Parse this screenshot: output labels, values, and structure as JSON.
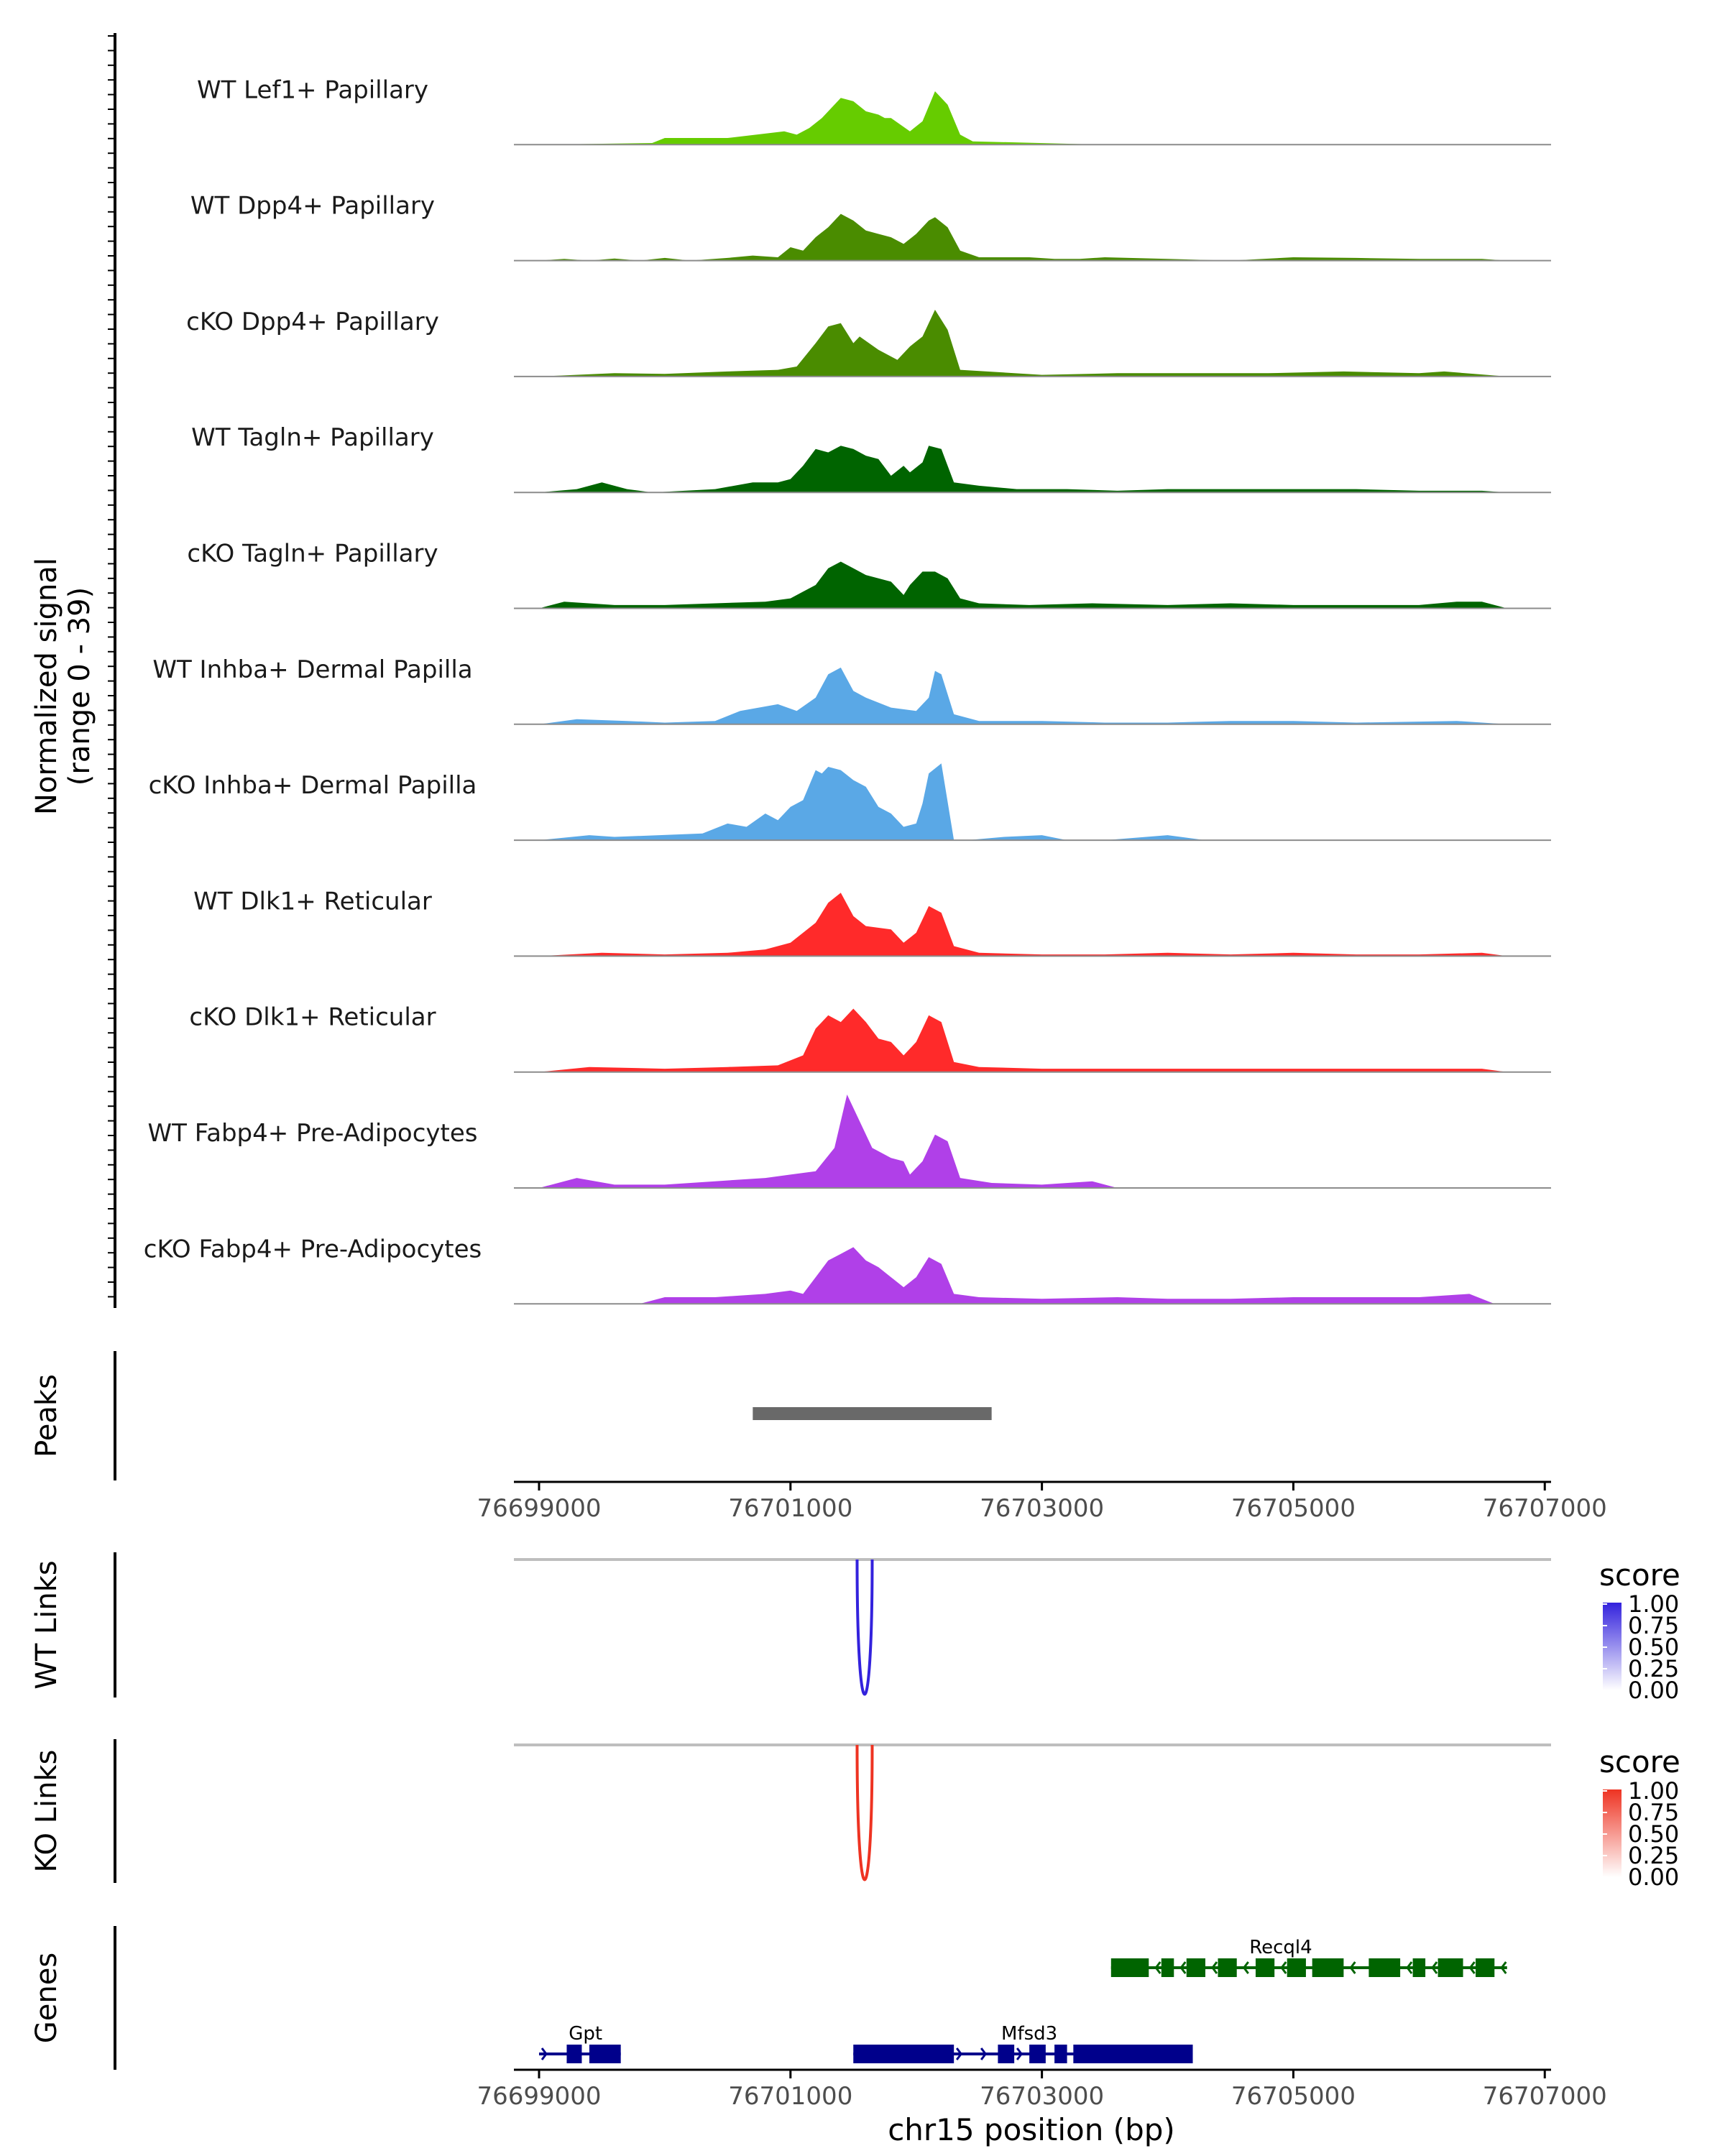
{
  "chart_data": {
    "type": "genome-coverage",
    "region": {
      "chrom": "chr15",
      "start": 76698800,
      "end": 76707050
    },
    "coverage": {
      "ylabel_line1": "Normalized signal",
      "ylabel_line2": "(range 0 - 39)",
      "y_range": [
        0,
        39
      ],
      "tracks": [
        {
          "name": "WT Lef1+ Papillary",
          "color": "#66cc00",
          "x": [
            76699000,
            76699900,
            76700000,
            76700500,
            76700950,
            76701050,
            76701150,
            76701250,
            76701400,
            76701500,
            76701600,
            76701700,
            76701750,
            76701800,
            76701950,
            76702050,
            76702150,
            76702250,
            76702350,
            76702450,
            76703500,
            76706700
          ],
          "y": [
            0,
            0.5,
            2,
            2,
            4,
            3,
            5,
            8,
            14,
            13,
            10,
            9,
            8,
            8,
            4,
            7,
            16,
            12,
            3,
            1,
            0,
            0
          ]
        },
        {
          "name": "WT Dpp4+ Papillary",
          "color": "#4a8c00",
          "x": [
            76699000,
            76699200,
            76699400,
            76699600,
            76699800,
            76700000,
            76700200,
            76700500,
            76700700,
            76700900,
            76701000,
            76701100,
            76701200,
            76701300,
            76701400,
            76701500,
            76701600,
            76701700,
            76701800,
            76701900,
            76702000,
            76702100,
            76702150,
            76702250,
            76702350,
            76702500,
            76702900,
            76703100,
            76703300,
            76703500,
            76704000,
            76704500,
            76705000,
            76705500,
            76706000,
            76706500,
            76706700
          ],
          "y": [
            0,
            0.5,
            0,
            0.6,
            0,
            0.8,
            0,
            0.8,
            1.5,
            1,
            4,
            3,
            7,
            10,
            14,
            12,
            9,
            8,
            7,
            5,
            8,
            12,
            13,
            10,
            3,
            1,
            1,
            0.5,
            0.5,
            1,
            0.5,
            0,
            1,
            0.8,
            0.5,
            0.5,
            0
          ]
        },
        {
          "name": "cKO Dpp4+ Papillary",
          "color": "#4a8c00",
          "x": [
            76699000,
            76699600,
            76700000,
            76700500,
            76700900,
            76701050,
            76701200,
            76701300,
            76701400,
            76701500,
            76701550,
            76701700,
            76701850,
            76701950,
            76702050,
            76702150,
            76702250,
            76702350,
            76703000,
            76703600,
            76704200,
            76704800,
            76705400,
            76706000,
            76706200,
            76706700
          ],
          "y": [
            0,
            1,
            0.8,
            1.5,
            2,
            3,
            10,
            15,
            16,
            10,
            12,
            8,
            5,
            9,
            12,
            20,
            14,
            2,
            0.5,
            1,
            1,
            1,
            1.5,
            1,
            1.5,
            0
          ]
        },
        {
          "name": "WT Tagln+ Papillary",
          "color": "#006400",
          "x": [
            76699000,
            76699300,
            76699500,
            76699700,
            76699900,
            76700400,
            76700700,
            76700900,
            76701000,
            76701100,
            76701200,
            76701300,
            76701400,
            76701500,
            76701600,
            76701700,
            76701800,
            76701900,
            76701950,
            76702050,
            76702100,
            76702200,
            76702300,
            76702500,
            76702800,
            76703200,
            76703600,
            76704000,
            76704500,
            76705000,
            76705500,
            76706000,
            76706500,
            76706700
          ],
          "y": [
            0,
            1,
            3,
            1,
            0,
            1,
            3,
            3,
            4,
            8,
            13,
            12,
            14,
            13,
            11,
            10,
            5,
            8,
            6,
            9,
            14,
            13,
            3,
            2,
            1,
            1,
            0.5,
            1,
            1,
            1,
            1,
            0.5,
            0.5,
            0
          ]
        },
        {
          "name": "cKO Tagln+ Papillary",
          "color": "#006400",
          "x": [
            76699000,
            76699200,
            76699600,
            76700000,
            76700400,
            76700800,
            76701000,
            76701100,
            76701200,
            76701300,
            76701400,
            76701500,
            76701600,
            76701700,
            76701800,
            76701900,
            76701950,
            76702050,
            76702150,
            76702250,
            76702350,
            76702500,
            76702900,
            76703400,
            76704000,
            76704500,
            76705000,
            76705500,
            76706000,
            76706300,
            76706500,
            76706700
          ],
          "y": [
            0,
            2,
            1,
            1,
            1.5,
            2,
            3,
            5,
            7,
            12,
            14,
            12,
            10,
            9,
            8,
            4,
            7,
            11,
            11,
            9,
            3,
            1.5,
            1,
            1.5,
            1,
            1.5,
            1,
            1,
            1,
            2,
            2,
            0
          ]
        },
        {
          "name": "WT Inhba+ Dermal Papilla",
          "color": "#5aa8e6",
          "x": [
            76699000,
            76699300,
            76699700,
            76700000,
            76700400,
            76700600,
            76700900,
            76701050,
            76701200,
            76701300,
            76701400,
            76701500,
            76701600,
            76701800,
            76702000,
            76702100,
            76702150,
            76702200,
            76702300,
            76702500,
            76703000,
            76703500,
            76704000,
            76704500,
            76705000,
            76705500,
            76706300,
            76706700
          ],
          "y": [
            0,
            1.5,
            1,
            0.5,
            1,
            4,
            6,
            4,
            8,
            15,
            17,
            10,
            8,
            5,
            4,
            8,
            16,
            15,
            3,
            1,
            1,
            0.5,
            0.5,
            1,
            1,
            0.5,
            1,
            0
          ]
        },
        {
          "name": "cKO Inhba+ Dermal Papilla",
          "color": "#5aa8e6",
          "x": [
            76699000,
            76699400,
            76699600,
            76700300,
            76700500,
            76700650,
            76700800,
            76700900,
            76701000,
            76701100,
            76701200,
            76701250,
            76701300,
            76701400,
            76701500,
            76701600,
            76701700,
            76701800,
            76701900,
            76702000,
            76702050,
            76702100,
            76702200,
            76702300,
            76702400,
            76702700,
            76703000,
            76703200,
            76703500,
            76704000,
            76704300,
            76706700
          ],
          "y": [
            0,
            1.5,
            1,
            2,
            5,
            4,
            8,
            6,
            10,
            12,
            21,
            20,
            22,
            21,
            18,
            16,
            10,
            8,
            4,
            5,
            11,
            20,
            23,
            0,
            0,
            1,
            1.5,
            0,
            0,
            1.5,
            0,
            0
          ]
        },
        {
          "name": "WT Dlk1+ Reticular",
          "color": "#ff2a2a",
          "x": [
            76699000,
            76699500,
            76700000,
            76700500,
            76700800,
            76701000,
            76701200,
            76701300,
            76701400,
            76701500,
            76701600,
            76701800,
            76701900,
            76702000,
            76702100,
            76702200,
            76702300,
            76702500,
            76703000,
            76703500,
            76704000,
            76704500,
            76705000,
            76705500,
            76706000,
            76706500,
            76706700
          ],
          "y": [
            0,
            1,
            0.5,
            1,
            2,
            4,
            10,
            16,
            19,
            12,
            9,
            8,
            4,
            7,
            15,
            13,
            3,
            1,
            0.5,
            0.5,
            1,
            0.5,
            1,
            0.5,
            0.5,
            1,
            0
          ]
        },
        {
          "name": "cKO Dlk1+ Reticular",
          "color": "#ff2a2a",
          "x": [
            76699000,
            76699400,
            76700000,
            76700500,
            76700900,
            76701100,
            76701200,
            76701300,
            76701400,
            76701500,
            76701600,
            76701700,
            76701800,
            76701900,
            76702000,
            76702100,
            76702200,
            76702300,
            76702500,
            76703000,
            76703500,
            76704000,
            76704500,
            76705000,
            76705500,
            76706000,
            76706500,
            76706700
          ],
          "y": [
            0,
            1.5,
            1,
            1.5,
            2,
            5,
            13,
            17,
            15,
            19,
            15,
            10,
            9,
            5,
            9,
            17,
            15,
            3,
            1.5,
            1,
            1,
            1,
            1,
            1,
            1,
            1,
            1,
            0
          ]
        },
        {
          "name": "WT Fabp4+ Pre-Adipocytes",
          "color": "#b040e8",
          "x": [
            76699000,
            76699300,
            76699600,
            76700000,
            76700400,
            76700800,
            76701000,
            76701200,
            76701350,
            76701450,
            76701550,
            76701650,
            76701800,
            76701900,
            76701950,
            76702050,
            76702150,
            76702250,
            76702350,
            76702600,
            76703000,
            76703400,
            76703600
          ],
          "y": [
            0,
            3,
            1,
            1,
            2,
            3,
            4,
            5,
            12,
            28,
            20,
            12,
            9,
            8,
            4,
            8,
            16,
            14,
            3,
            1.5,
            1,
            2,
            0
          ]
        },
        {
          "name": "cKO Fabp4+ Pre-Adipocytes",
          "color": "#b040e8",
          "x": [
            76699800,
            76700000,
            76700400,
            76700800,
            76701000,
            76701100,
            76701200,
            76701300,
            76701400,
            76701500,
            76701600,
            76701700,
            76701800,
            76701900,
            76702000,
            76702100,
            76702200,
            76702300,
            76702500,
            76703000,
            76703600,
            76704000,
            76704500,
            76705000,
            76705500,
            76706000,
            76706400,
            76706600
          ],
          "y": [
            0,
            2,
            2,
            3,
            4,
            3,
            8,
            13,
            15,
            17,
            13,
            11,
            8,
            5,
            8,
            14,
            12,
            3,
            2,
            1.5,
            2,
            1.5,
            1.5,
            2,
            2,
            2,
            3,
            0
          ]
        }
      ]
    },
    "peaks": {
      "label": "Peaks",
      "intervals": [
        [
          76700700,
          76702600
        ]
      ],
      "color": "#696969"
    },
    "axis_mid": {
      "ticks": [
        76699000,
        76701000,
        76703000,
        76705000,
        76707000
      ],
      "tick_labels": [
        "76699000",
        "76701000",
        "76703000",
        "76705000",
        "76707000"
      ]
    },
    "links": [
      {
        "label": "WT Links",
        "arcs": [
          {
            "start": 76701530,
            "end": 76701650,
            "score": 1.0
          }
        ],
        "legend_title": "score",
        "legend_labels": [
          "1.00",
          "0.75",
          "0.50",
          "0.25",
          "0.00"
        ],
        "color_high": "#3322dd",
        "color_low": "#ffffff"
      },
      {
        "label": "KO Links",
        "arcs": [
          {
            "start": 76701530,
            "end": 76701650,
            "score": 1.0
          }
        ],
        "legend_title": "score",
        "legend_labels": [
          "1.00",
          "0.75",
          "0.50",
          "0.25",
          "0.00"
        ],
        "color_high": "#ee3322",
        "color_low": "#ffffff"
      }
    ],
    "genes": {
      "label": "Genes",
      "items": [
        {
          "name": "Recql4",
          "strand": "-",
          "row": 0,
          "color": "#006400",
          "start": 76703550,
          "end": 76706700,
          "name_pos": 76704900,
          "exons": [
            [
              76703550,
              76703850
            ],
            [
              76703950,
              76704050
            ],
            [
              76704150,
              76704300
            ],
            [
              76704400,
              76704550
            ],
            [
              76704700,
              76704850
            ],
            [
              76704950,
              76705100
            ],
            [
              76705150,
              76705400
            ],
            [
              76705600,
              76705850
            ],
            [
              76705950,
              76706050
            ],
            [
              76706150,
              76706350
            ],
            [
              76706450,
              76706600
            ]
          ]
        },
        {
          "name": "Gpt",
          "strand": "+",
          "row": 1,
          "color": "#00008b",
          "start": 76699000,
          "end": 76699650,
          "name_pos": 76699370,
          "exons": [
            [
              76699220,
              76699340
            ],
            [
              76699400,
              76699650
            ]
          ]
        },
        {
          "name": "Mfsd3",
          "strand": "+",
          "row": 1,
          "color": "#00008b",
          "start": 76701500,
          "end": 76704200,
          "name_pos": 76702900,
          "exons": [
            [
              76701500,
              76702300
            ],
            [
              76702650,
              76702780
            ],
            [
              76702900,
              76703030
            ],
            [
              76703100,
              76703200
            ],
            [
              76703250,
              76704200
            ]
          ]
        }
      ]
    },
    "axis_bottom": {
      "ticks": [
        76699000,
        76701000,
        76703000,
        76705000,
        76707000
      ],
      "tick_labels": [
        "76699000",
        "76701000",
        "76703000",
        "76705000",
        "76707000"
      ],
      "xlabel": "chr15 position (bp)"
    }
  }
}
